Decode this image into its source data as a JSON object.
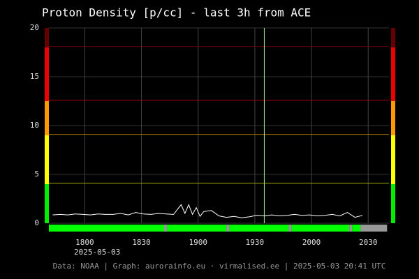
{
  "chart_data": {
    "type": "line",
    "title": "Proton Density [p/cc] - last 3h from ACE",
    "date_label": "2025-05-03",
    "footer": "Data: NOAA | Graph: aurorainfo.eu · virmalised.ee | 2025-05-03 20:41 UTC",
    "x": [
      1063,
      1067,
      1071,
      1075,
      1079,
      1083,
      1087,
      1091,
      1095,
      1099,
      1103,
      1107,
      1111,
      1115,
      1119,
      1123,
      1127,
      1131,
      1133,
      1135,
      1137,
      1139,
      1141,
      1143,
      1147,
      1151,
      1155,
      1159,
      1163,
      1167,
      1171,
      1175,
      1179,
      1183,
      1187,
      1191,
      1195,
      1199,
      1203,
      1207,
      1211,
      1215,
      1219,
      1223,
      1227
    ],
    "series": [
      {
        "name": "Proton Density",
        "color": "#ffffff",
        "values": [
          0.85,
          0.9,
          0.85,
          0.95,
          0.9,
          0.85,
          0.95,
          0.9,
          0.9,
          1.0,
          0.85,
          1.1,
          0.95,
          0.9,
          1.0,
          0.95,
          0.9,
          1.9,
          1.0,
          1.9,
          0.9,
          1.6,
          0.7,
          1.2,
          1.3,
          0.75,
          0.6,
          0.7,
          0.55,
          0.65,
          0.8,
          0.75,
          0.85,
          0.75,
          0.8,
          0.9,
          0.8,
          0.85,
          0.75,
          0.8,
          0.9,
          0.75,
          1.1,
          0.6,
          0.8
        ]
      }
    ],
    "xlim": [
      1061,
      1241
    ],
    "ylim": [
      0,
      20
    ],
    "xticks": [
      {
        "value": 1080,
        "label": "1800"
      },
      {
        "value": 1110,
        "label": "1830"
      },
      {
        "value": 1140,
        "label": "1900"
      },
      {
        "value": 1170,
        "label": "1930"
      },
      {
        "value": 1200,
        "label": "2000"
      },
      {
        "value": 1230,
        "label": "2030"
      }
    ],
    "yticks": [
      0,
      5,
      10,
      15,
      20
    ],
    "grid": true,
    "marker_x": 1175,
    "bands": [
      {
        "from": 0,
        "to": 4,
        "color": "#00ee00"
      },
      {
        "from": 4,
        "to": 9,
        "color": "#ffff00"
      },
      {
        "from": 9,
        "to": 12.5,
        "color": "#ff9900"
      },
      {
        "from": 12.5,
        "to": 18,
        "color": "#ee0000"
      },
      {
        "from": 18,
        "to": 20,
        "color": "#660000"
      }
    ],
    "thresholds": [
      {
        "value": 4.1,
        "color": "#aaaa00"
      },
      {
        "value": 9.1,
        "color": "#aa7700"
      },
      {
        "value": 12.6,
        "color": "#aa0000"
      },
      {
        "value": 18.1,
        "color": "#660000"
      }
    ],
    "status": [
      {
        "from": 1061,
        "to": 1122,
        "color": "#00ff00"
      },
      {
        "from": 1122,
        "to": 1123.5,
        "color": "#999999"
      },
      {
        "from": 1123.5,
        "to": 1155,
        "color": "#00ff00"
      },
      {
        "from": 1155,
        "to": 1156.5,
        "color": "#999999"
      },
      {
        "from": 1156.5,
        "to": 1188,
        "color": "#00ff00"
      },
      {
        "from": 1188,
        "to": 1189.5,
        "color": "#999999"
      },
      {
        "from": 1189.5,
        "to": 1220,
        "color": "#00ff00"
      },
      {
        "from": 1220,
        "to": 1221.5,
        "color": "#999999"
      },
      {
        "from": 1221.5,
        "to": 1226,
        "color": "#00ff00"
      },
      {
        "from": 1226,
        "to": 1240,
        "color": "#999999"
      }
    ]
  }
}
